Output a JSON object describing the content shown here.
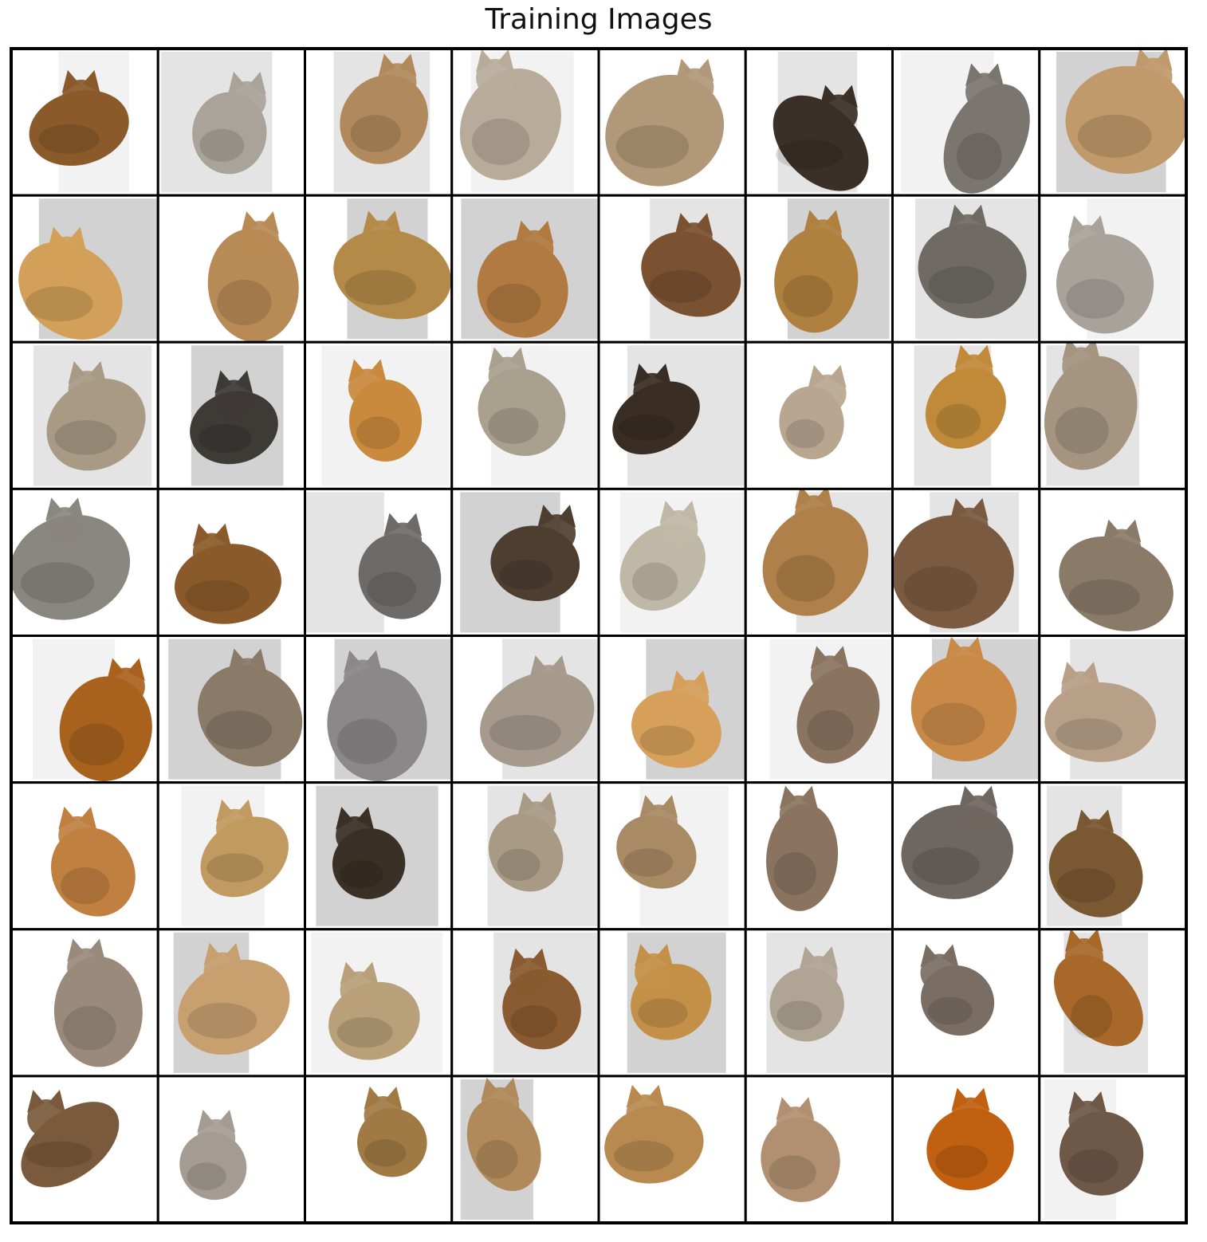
{
  "title": "Training Images"
}
